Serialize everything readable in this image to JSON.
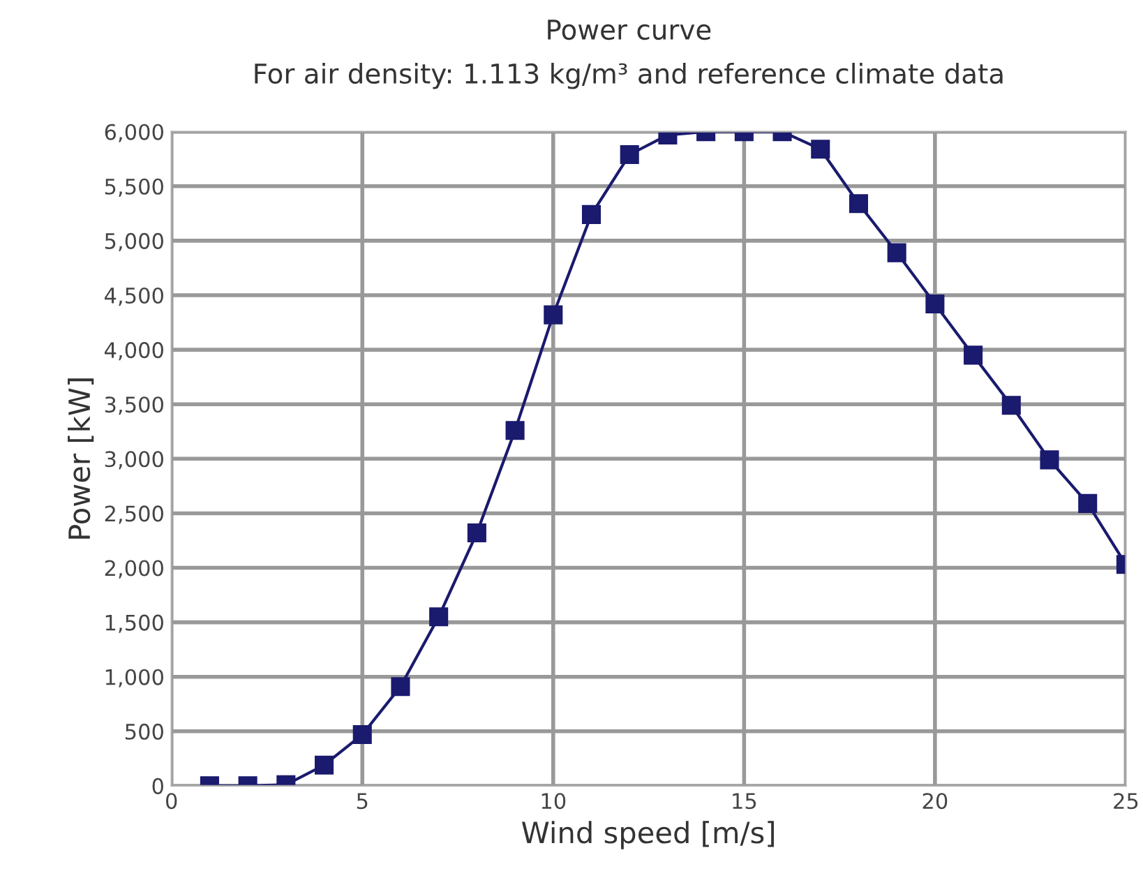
{
  "chart_data": {
    "type": "line",
    "title": "Power curve",
    "subtitle": "For air density: 1.113 kg/m³ and reference climate data",
    "xlabel": "Wind speed [m/s]",
    "ylabel": "Power [kW]",
    "x": [
      1,
      2,
      3,
      4,
      5,
      6,
      7,
      8,
      9,
      10,
      11,
      12,
      13,
      14,
      15,
      16,
      17,
      18,
      19,
      20,
      21,
      22,
      23,
      24,
      25
    ],
    "series": [
      {
        "color": "#1a1a6e",
        "values": [
          0,
          0,
          10,
          190,
          470,
          910,
          1550,
          2320,
          3260,
          4320,
          5240,
          5790,
          5970,
          6000,
          6000,
          6000,
          5840,
          5340,
          4890,
          4420,
          3950,
          3490,
          2990,
          2590,
          2030
        ]
      }
    ],
    "xlim": [
      0,
      25
    ],
    "xticks": [
      0,
      5,
      10,
      15,
      20,
      25
    ],
    "ylim": [
      0,
      6000
    ],
    "yticks": [
      0,
      {
        "value": 500,
        "label": "500"
      },
      {
        "value": 1000,
        "label": "1,000"
      },
      {
        "value": 1500,
        "label": "1,500"
      },
      {
        "value": 2000,
        "label": "2,000"
      },
      {
        "value": 2500,
        "label": "2,500"
      },
      {
        "value": 3000,
        "label": "3,000"
      },
      {
        "value": 3500,
        "label": "3,500"
      },
      {
        "value": 4000,
        "label": "4,000"
      },
      {
        "value": 4500,
        "label": "4,500"
      },
      {
        "value": 5000,
        "label": "5,000"
      },
      {
        "value": 5500,
        "label": "5,500"
      },
      {
        "value": 6000,
        "label": "6,000"
      }
    ],
    "grid": true,
    "marker": "square",
    "line_style": "solid"
  }
}
